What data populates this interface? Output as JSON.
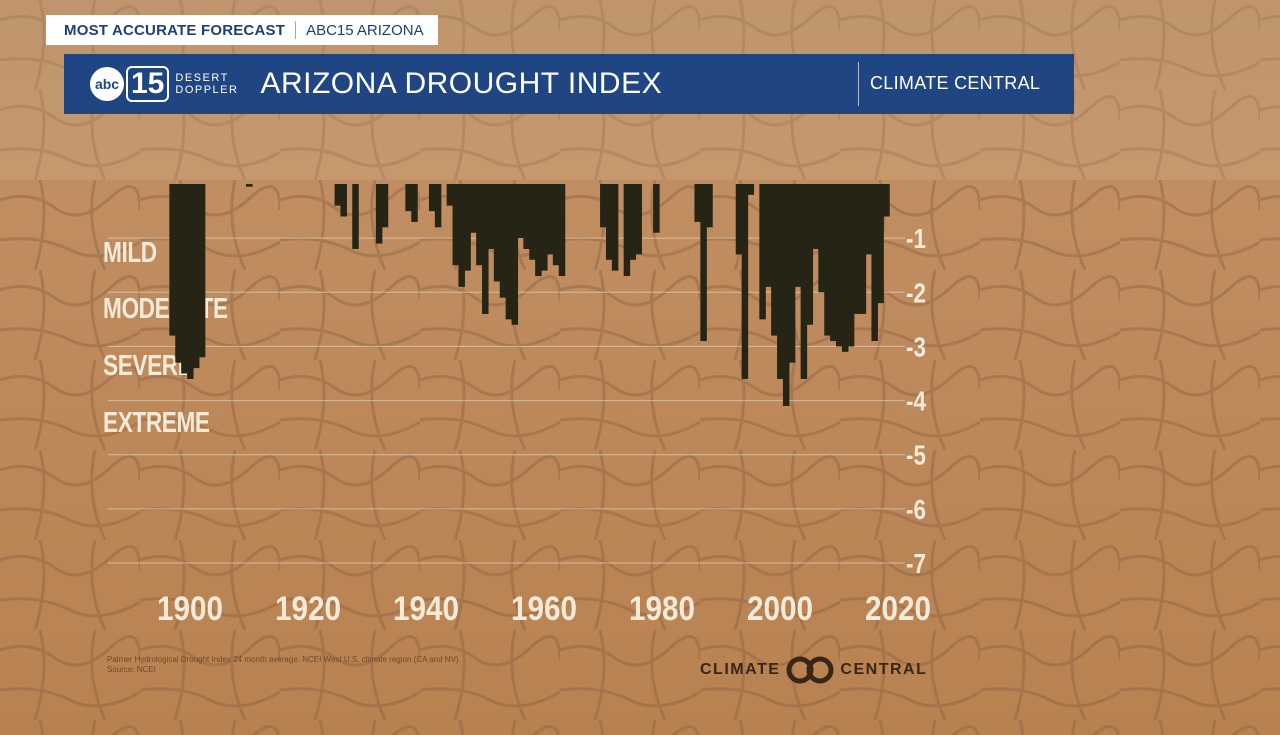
{
  "header": {
    "tag_left": "MOST ACCURATE FORECAST",
    "tag_right": "ABC15 ARIZONA",
    "logo_abc": "abc",
    "logo_num": "15",
    "logo_line1": "DESERT",
    "logo_line2": "DOPPLER",
    "title": "ARIZONA DROUGHT INDEX",
    "partner": "CLIMATE CENTRAL"
  },
  "levels": [
    "MILD",
    "MODERATE",
    "SEVERE",
    "EXTREME"
  ],
  "footnote": {
    "line1": "Palmer Hydrological Drought Index 24 month average. NCEI West U.S. climate region (CA and NV).",
    "line2": "Source: NCEI"
  },
  "footer_logo": {
    "left": "CLIMATE",
    "right": "CENTRAL"
  },
  "colors": {
    "bar": "#262414",
    "grid": "#e6d2b6",
    "banner": "#1f4682",
    "label": "#f4ead8"
  },
  "chart_data": {
    "type": "bar",
    "title": "",
    "xlabel": "",
    "ylabel": "",
    "xlim": [
      1899,
      2020
    ],
    "ylim": [
      -7,
      0
    ],
    "x_ticks": [
      1900,
      1920,
      1940,
      1960,
      1980,
      2000,
      2020
    ],
    "y_ticks": [
      -1,
      -2,
      -3,
      -4,
      -5,
      -6,
      -7
    ],
    "y_tick_labels": [
      "-1",
      "-2",
      "-3",
      "-4",
      "-5",
      "-6",
      "-7"
    ],
    "x": [
      1897,
      1898,
      1899,
      1900,
      1901,
      1902,
      1910,
      1925,
      1926,
      1928,
      1932,
      1933,
      1937,
      1938,
      1941,
      1942,
      1944,
      1945,
      1946,
      1947,
      1948,
      1949,
      1950,
      1951,
      1952,
      1953,
      1954,
      1955,
      1956,
      1957,
      1958,
      1959,
      1960,
      1961,
      1962,
      1963,
      1970,
      1971,
      1972,
      1974,
      1975,
      1976,
      1979,
      1986,
      1987,
      1988,
      1993,
      1994,
      1995,
      1997,
      1998,
      1999,
      2000,
      2001,
      2002,
      2003,
      2004,
      2005,
      2006,
      2007,
      2008,
      2009,
      2010,
      2011,
      2012,
      2013,
      2014,
      2015,
      2016,
      2017,
      2018
    ],
    "values": [
      -2.8,
      -3.3,
      -3.5,
      -3.6,
      -3.4,
      -3.2,
      -0.05,
      -0.4,
      -0.6,
      -1.2,
      -1.1,
      -0.8,
      -0.5,
      -0.7,
      -0.5,
      -0.8,
      -0.4,
      -1.5,
      -1.9,
      -1.6,
      -0.9,
      -1.5,
      -2.4,
      -1.2,
      -1.8,
      -2.1,
      -2.5,
      -2.6,
      -1.0,
      -1.2,
      -1.4,
      -1.7,
      -1.6,
      -1.3,
      -1.5,
      -1.7,
      -0.8,
      -1.4,
      -1.6,
      -1.7,
      -1.4,
      -1.3,
      -0.9,
      -0.7,
      -2.9,
      -0.8,
      -1.3,
      -3.6,
      -0.2,
      -2.5,
      -1.9,
      -2.8,
      -3.6,
      -4.1,
      -3.3,
      -1.9,
      -3.6,
      -2.6,
      -1.2,
      -2.0,
      -2.8,
      -2.9,
      -3.0,
      -3.1,
      -3.0,
      -2.4,
      -2.4,
      -1.3,
      -2.9,
      -2.2,
      -0.6
    ]
  }
}
